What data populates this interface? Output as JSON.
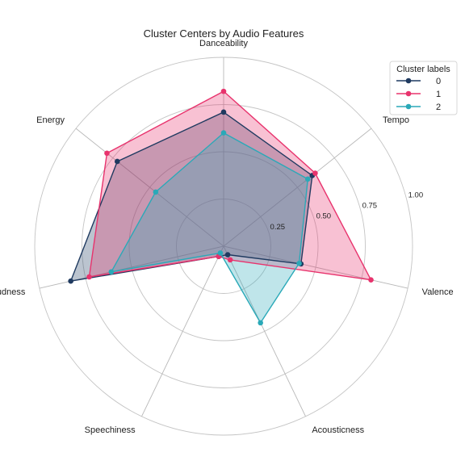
{
  "chart_data": {
    "type": "radar",
    "title": "Cluster Centers by Audio Features",
    "axes": [
      "Danceability",
      "Tempo",
      "Valence",
      "Acousticness",
      "Speechiness",
      "Loudness",
      "Energy"
    ],
    "ticks": [
      0.25,
      0.5,
      0.75,
      1.0
    ],
    "tick_labels": [
      "0.25",
      "0.50",
      "0.75",
      "1.00"
    ],
    "rlim": [
      0,
      1
    ],
    "grid": true,
    "legend": {
      "title": "Cluster labels",
      "position": "top-right"
    },
    "series": [
      {
        "name": "0",
        "color": "#1f3a60",
        "values": [
          0.71,
          0.6,
          0.42,
          0.05,
          0.06,
          0.83,
          0.72
        ]
      },
      {
        "name": "1",
        "color": "#e8336d",
        "values": [
          0.82,
          0.62,
          0.8,
          0.08,
          0.06,
          0.73,
          0.79
        ]
      },
      {
        "name": "2",
        "color": "#2aa9b8",
        "values": [
          0.6,
          0.57,
          0.41,
          0.45,
          0.04,
          0.61,
          0.46
        ]
      }
    ]
  }
}
